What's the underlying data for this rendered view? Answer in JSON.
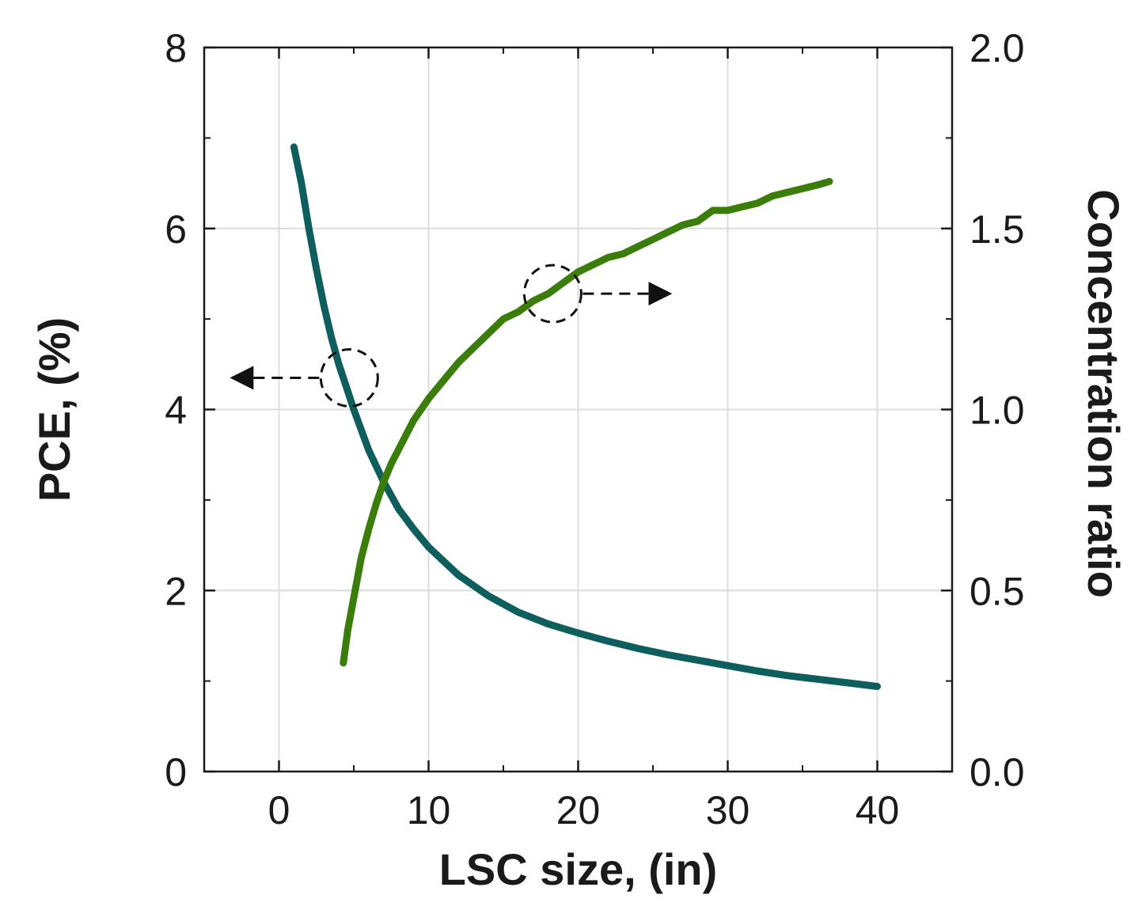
{
  "chart_data": {
    "type": "line",
    "title": "",
    "xlabel": "LSC size, (in)",
    "ylabel": "PCE, (%)",
    "y2label": "Concentration ratio",
    "xlim": [
      -5,
      45
    ],
    "ylim": [
      0,
      8
    ],
    "y2lim": [
      0,
      2.0
    ],
    "grid": true,
    "x_ticks": [
      "0",
      "10",
      "20",
      "30",
      "40"
    ],
    "y_ticks": [
      "0",
      "2",
      "4",
      "6",
      "8"
    ],
    "y2_ticks": [
      "0.0",
      "0.5",
      "1.0",
      "1.5",
      "2.0"
    ],
    "series": [
      {
        "name": "PCE",
        "axis": "left",
        "color": "#0e5e5e",
        "x": [
          1,
          1.5,
          2,
          2.5,
          3,
          3.5,
          4,
          4.5,
          5,
          6,
          7,
          8,
          9,
          10,
          12,
          14,
          16,
          18,
          20,
          22,
          24,
          26,
          28,
          30,
          32,
          34,
          36,
          38,
          40
        ],
        "y": [
          6.9,
          6.5,
          6.0,
          5.55,
          5.15,
          4.8,
          4.5,
          4.25,
          4.0,
          3.55,
          3.2,
          2.9,
          2.68,
          2.48,
          2.17,
          1.94,
          1.76,
          1.63,
          1.53,
          1.44,
          1.36,
          1.29,
          1.23,
          1.17,
          1.11,
          1.06,
          1.02,
          0.98,
          0.94
        ]
      },
      {
        "name": "Concentration ratio",
        "axis": "right",
        "color": "#3a7d0a",
        "x": [
          4.3,
          4.6,
          5,
          5.5,
          6,
          6.5,
          7,
          7.5,
          8,
          9,
          10,
          11,
          12,
          13,
          14,
          15,
          16,
          17,
          18,
          19,
          20,
          21,
          22,
          23,
          24,
          25,
          26,
          27,
          28,
          29,
          30,
          31,
          32,
          33,
          34,
          35,
          36,
          36.8
        ],
        "y": [
          0.3,
          0.39,
          0.48,
          0.59,
          0.67,
          0.74,
          0.8,
          0.85,
          0.89,
          0.97,
          1.03,
          1.08,
          1.13,
          1.17,
          1.21,
          1.25,
          1.27,
          1.3,
          1.32,
          1.35,
          1.38,
          1.4,
          1.42,
          1.43,
          1.45,
          1.47,
          1.49,
          1.51,
          1.52,
          1.55,
          1.55,
          1.56,
          1.57,
          1.59,
          1.6,
          1.61,
          1.62,
          1.63
        ]
      }
    ],
    "annotations": [
      {
        "type": "circle-arrow",
        "target_series": "PCE",
        "direction": "left",
        "at_x": 4.7,
        "at_y": 4.35
      },
      {
        "type": "circle-arrow",
        "target_series": "Concentration ratio",
        "direction": "right",
        "at_x": 18.3,
        "at_y": 1.32
      }
    ]
  }
}
